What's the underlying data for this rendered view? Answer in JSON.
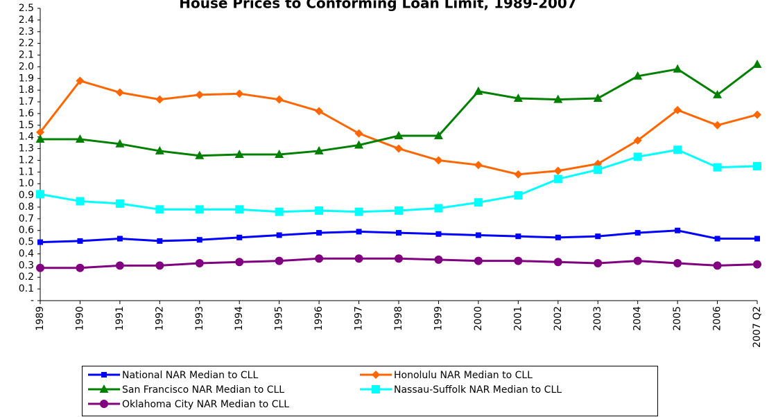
{
  "chart_data": {
    "type": "line",
    "title": "House Prices to Conforming Loan Limit,  1989-2007",
    "categories": [
      "1989",
      "1990",
      "1991",
      "1992",
      "1993",
      "1994",
      "1995",
      "1996",
      "1997",
      "1998",
      "1999",
      "2000",
      "2001",
      "2002",
      "2003",
      "2004",
      "2005",
      "2006",
      "2007 Q2"
    ],
    "ylim": [
      0,
      2.5
    ],
    "yticks": [
      {
        "value": 0,
        "label": "-"
      },
      0.1,
      0.2,
      0.3,
      0.4,
      0.5,
      0.6,
      0.7,
      0.8,
      0.9,
      {
        "value": 1,
        "label": "1.0"
      },
      1.1,
      1.2,
      1.3,
      1.4,
      1.5,
      1.6,
      1.7,
      1.8,
      1.9,
      {
        "value": 2,
        "label": "2.0"
      },
      2.1,
      2.2,
      2.3,
      2.4,
      2.5
    ],
    "grid": false,
    "series": [
      {
        "name": "National NAR Median to CLL",
        "color": "#0000ff",
        "marker": "square",
        "values": [
          0.5,
          0.51,
          0.53,
          0.51,
          0.52,
          0.54,
          0.56,
          0.58,
          0.59,
          0.58,
          0.57,
          0.56,
          0.55,
          0.54,
          0.55,
          0.58,
          0.6,
          0.53,
          0.53
        ]
      },
      {
        "name": "Honolulu NAR Median to CLL",
        "color": "#ff6600",
        "marker": "diamond",
        "values": [
          1.44,
          1.88,
          1.78,
          1.72,
          1.76,
          1.77,
          1.72,
          1.62,
          1.43,
          1.3,
          1.2,
          1.16,
          1.08,
          1.11,
          1.17,
          1.37,
          1.63,
          1.5,
          1.59
        ]
      },
      {
        "name": "San Francisco NAR Median to CLL",
        "color": "#008000",
        "marker": "triangle",
        "values": [
          1.38,
          1.38,
          1.34,
          1.28,
          1.24,
          1.25,
          1.25,
          1.28,
          1.33,
          1.41,
          1.41,
          1.79,
          1.73,
          1.72,
          1.73,
          1.92,
          1.98,
          1.76,
          2.02
        ]
      },
      {
        "name": "Nassau-Suffolk NAR Median to CLL",
        "color": "#00ffff",
        "marker": "bigsquare",
        "values": [
          0.91,
          0.85,
          0.83,
          0.78,
          0.78,
          0.78,
          0.76,
          0.77,
          0.76,
          0.77,
          0.79,
          0.84,
          0.9,
          1.04,
          1.12,
          1.23,
          1.29,
          1.14,
          1.15
        ]
      },
      {
        "name": "Oklahoma City NAR Median to CLL",
        "color": "#800080",
        "marker": "circle",
        "values": [
          0.28,
          0.28,
          0.3,
          0.3,
          0.32,
          0.33,
          0.34,
          0.36,
          0.36,
          0.36,
          0.35,
          0.34,
          0.34,
          0.33,
          0.32,
          0.34,
          0.32,
          0.3,
          0.31
        ]
      }
    ]
  }
}
